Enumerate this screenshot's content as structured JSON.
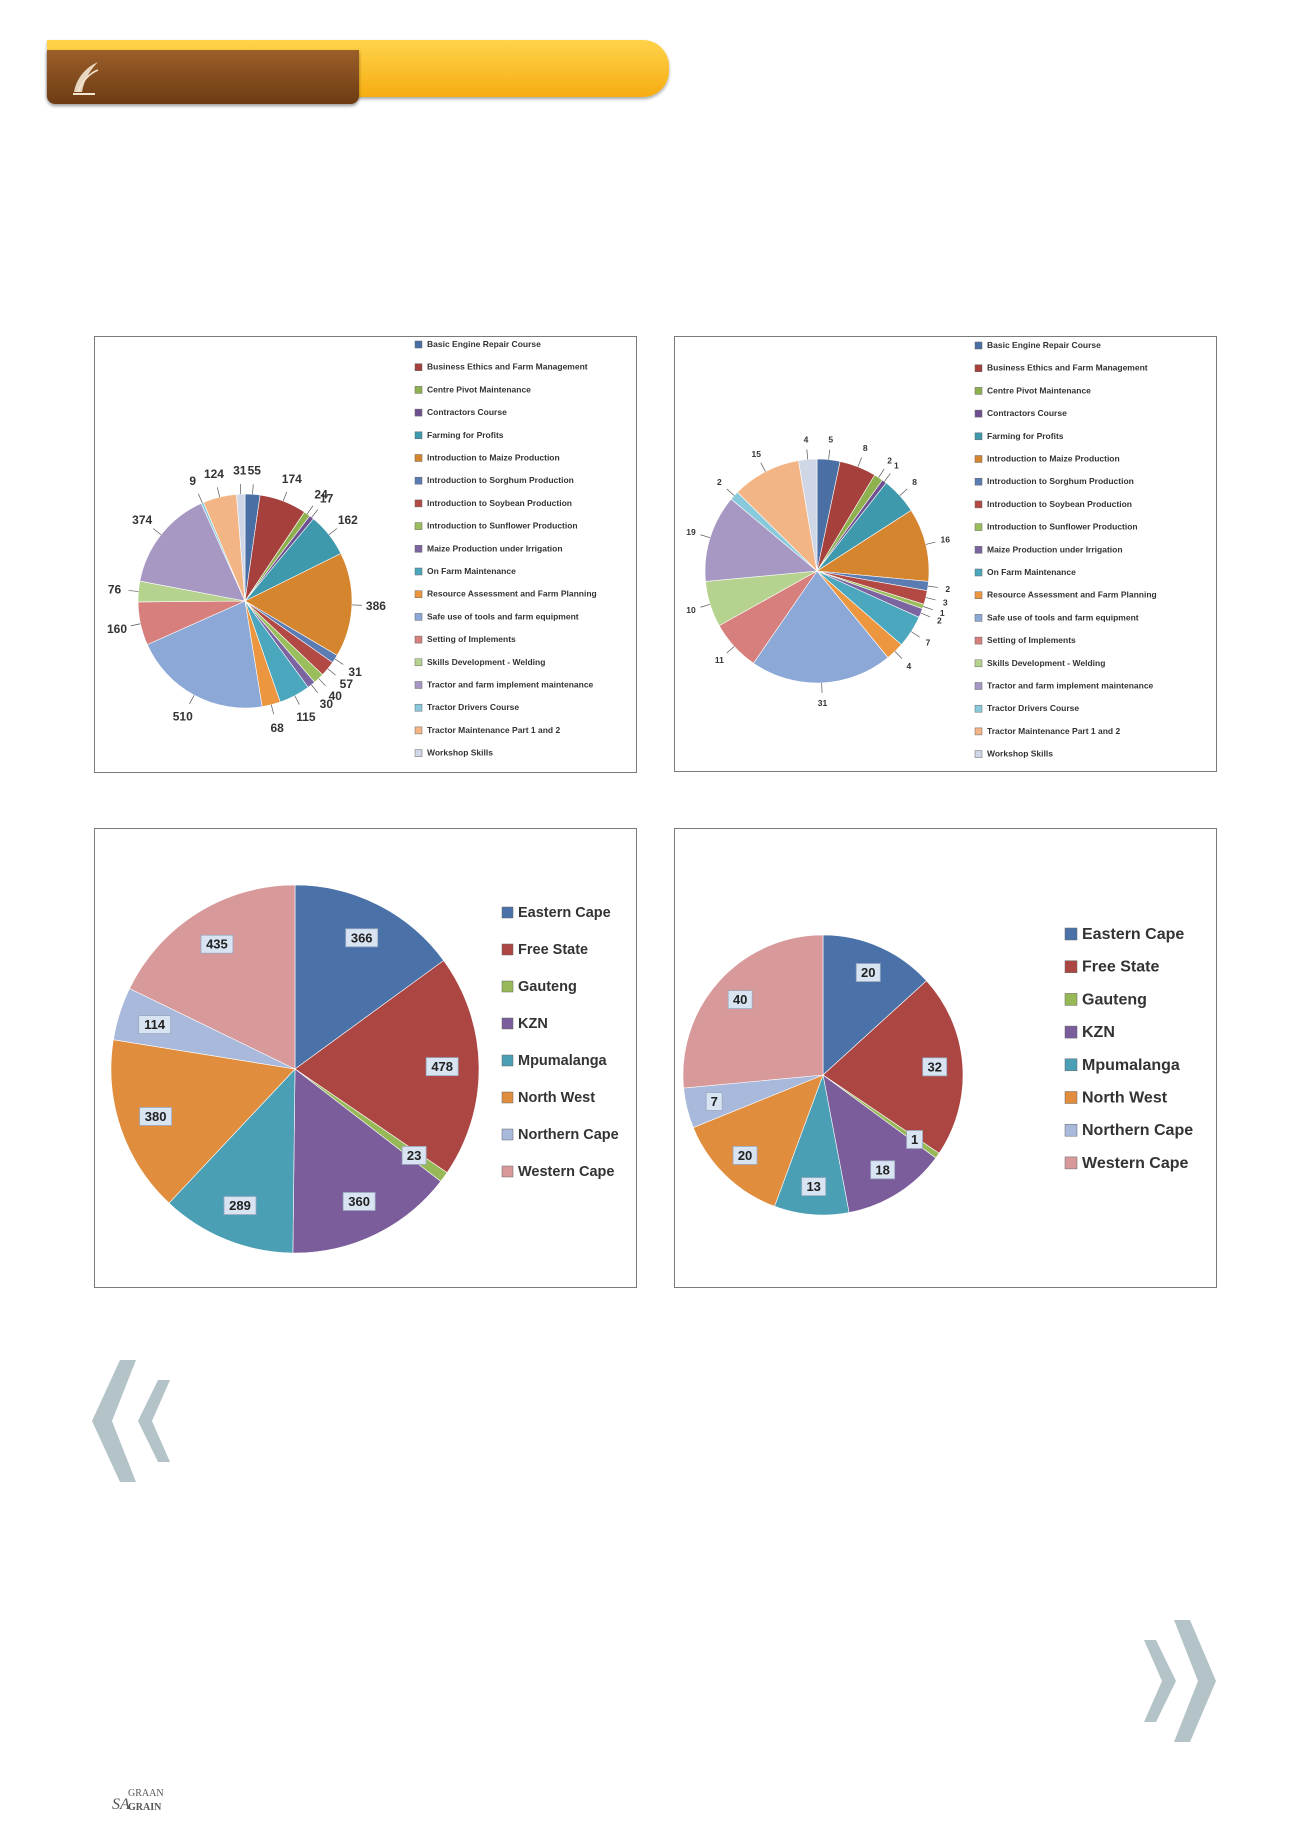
{
  "charts": [
    {
      "type": "pie",
      "title": "",
      "legend_position": "right",
      "slices": [
        {
          "label": "Basic Engine Repair Course",
          "value": 55,
          "color": "#4a6fa5"
        },
        {
          "label": "Business Ethics and Farm Management",
          "value": 174,
          "color": "#a5403d"
        },
        {
          "label": "Centre Pivot Maintenance",
          "value": 24,
          "color": "#8eb04f"
        },
        {
          "label": "Contractors Course",
          "value": 17,
          "color": "#6e5090"
        },
        {
          "label": "Farming for Profits",
          "value": 162,
          "color": "#3f99ad"
        },
        {
          "label": "Introduction to Maize Production",
          "value": 386,
          "color": "#d6852f"
        },
        {
          "label": "Introduction to Sorghum Production",
          "value": 31,
          "color": "#5b7cb3"
        },
        {
          "label": "Introduction to Soybean Production",
          "value": 57,
          "color": "#b24944"
        },
        {
          "label": "Introduction to Sunflower Production",
          "value": 40,
          "color": "#9bbe5c"
        },
        {
          "label": "Maize Production under Irrigation",
          "value": 30,
          "color": "#7c64a1"
        },
        {
          "label": "On Farm Maintenance",
          "value": 115,
          "color": "#4aa7be"
        },
        {
          "label": "Resource Assessment and Farm Planning",
          "value": 68,
          "color": "#ec9640"
        },
        {
          "label": "Safe use of tools and farm equipment",
          "value": 510,
          "color": "#8ba8d6"
        },
        {
          "label": "Setting of Implements",
          "value": 160,
          "color": "#d67f7c"
        },
        {
          "label": "Skills Development - Welding",
          "value": 76,
          "color": "#b5d38f"
        },
        {
          "label": "Tractor and farm implement maintenance",
          "value": 374,
          "color": "#a697c3"
        },
        {
          "label": "Tractor Drivers Course",
          "value": 9,
          "color": "#88c9dc"
        },
        {
          "label": "Tractor Maintenance Part 1 and 2",
          "value": 124,
          "color": "#f3b585"
        },
        {
          "label": "Workshop Skills",
          "value": 31,
          "color": "#cfd6e6"
        }
      ]
    },
    {
      "type": "pie",
      "title": "",
      "legend_position": "right",
      "slices": [
        {
          "label": "Basic Engine Repair Course",
          "value": 5,
          "color": "#4a6fa5"
        },
        {
          "label": "Business Ethics and Farm Management",
          "value": 8,
          "color": "#a5403d"
        },
        {
          "label": "Centre Pivot Maintenance",
          "value": 2,
          "color": "#8eb04f"
        },
        {
          "label": "Contractors Course",
          "value": 1,
          "color": "#6e5090"
        },
        {
          "label": "Farming for Profits",
          "value": 8,
          "color": "#3f99ad"
        },
        {
          "label": "Introduction to Maize Production",
          "value": 16,
          "color": "#d6852f"
        },
        {
          "label": "Introduction to Sorghum Production",
          "value": 2,
          "color": "#5b7cb3"
        },
        {
          "label": "Introduction to Soybean Production",
          "value": 3,
          "color": "#b24944"
        },
        {
          "label": "Introduction to Sunflower Production",
          "value": 1,
          "color": "#9bbe5c"
        },
        {
          "label": "Maize Production under Irrigation",
          "value": 2,
          "color": "#7c64a1"
        },
        {
          "label": "On Farm Maintenance",
          "value": 7,
          "color": "#4aa7be"
        },
        {
          "label": "Resource Assessment and Farm Planning",
          "value": 4,
          "color": "#ec9640"
        },
        {
          "label": "Safe use of tools and farm equipment",
          "value": 31,
          "color": "#8ba8d6"
        },
        {
          "label": "Setting of Implements",
          "value": 11,
          "color": "#d67f7c"
        },
        {
          "label": "Skills Development - Welding",
          "value": 10,
          "color": "#b5d38f"
        },
        {
          "label": "Tractor and farm implement maintenance",
          "value": 19,
          "color": "#a697c3"
        },
        {
          "label": "Tractor Drivers Course",
          "value": 2,
          "color": "#88c9dc"
        },
        {
          "label": "Tractor Maintenance Part 1 and 2",
          "value": 15,
          "color": "#f3b585"
        },
        {
          "label": "Workshop Skills",
          "value": 4,
          "color": "#cfd6e6"
        }
      ]
    },
    {
      "type": "pie",
      "title": "",
      "legend_position": "right",
      "slices": [
        {
          "label": "Eastern Cape",
          "value": 366,
          "color": "#4a72a8"
        },
        {
          "label": "Free State",
          "value": 478,
          "color": "#ab4643"
        },
        {
          "label": "Gauteng",
          "value": 23,
          "color": "#97b856"
        },
        {
          "label": "KZN",
          "value": 360,
          "color": "#7a5d9a"
        },
        {
          "label": "Mpumalanga",
          "value": 289,
          "color": "#4a9fb4"
        },
        {
          "label": "North West",
          "value": 380,
          "color": "#e08d3e"
        },
        {
          "label": "Northern Cape",
          "value": 114,
          "color": "#a8b9dc"
        },
        {
          "label": "Western Cape",
          "value": 435,
          "color": "#d7999a"
        }
      ]
    },
    {
      "type": "pie",
      "title": "",
      "legend_position": "right",
      "slices": [
        {
          "label": "Eastern Cape",
          "value": 20,
          "color": "#4a72a8"
        },
        {
          "label": "Free State",
          "value": 32,
          "color": "#ab4643"
        },
        {
          "label": "Gauteng",
          "value": 1,
          "color": "#97b856"
        },
        {
          "label": "KZN",
          "value": 18,
          "color": "#7a5d9a"
        },
        {
          "label": "Mpumalanga",
          "value": 13,
          "color": "#4a9fb4"
        },
        {
          "label": "North West",
          "value": 20,
          "color": "#e08d3e"
        },
        {
          "label": "Northern Cape",
          "value": 7,
          "color": "#a8b9dc"
        },
        {
          "label": "Western Cape",
          "value": 40,
          "color": "#d7999a"
        }
      ]
    }
  ],
  "footer": {
    "logo_top": "GRAAN",
    "logo_bottom": "GRAIN",
    "logo_prefix": "SA"
  },
  "colors": {
    "chevron": "#b3c3c7",
    "banner_yellow": "#f8bd25",
    "banner_brown": "#7e4619"
  }
}
